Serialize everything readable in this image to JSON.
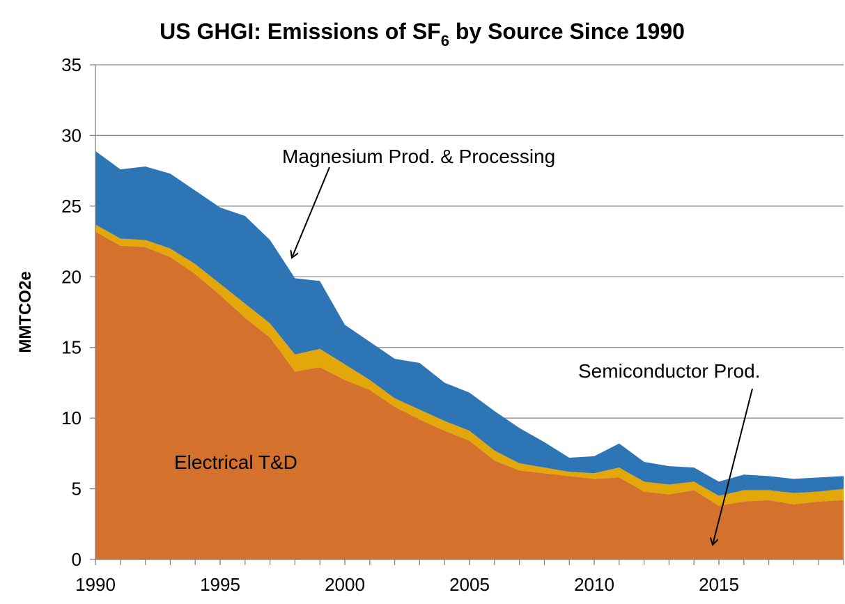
{
  "chart_data": {
    "type": "stacked_area",
    "title_parts": [
      "US GHGI: Emissions of SF",
      "6",
      " by Source Since 1990"
    ],
    "ylabel": "MMTCO2e",
    "x": [
      1990,
      1991,
      1992,
      1993,
      1994,
      1995,
      1996,
      1997,
      1998,
      1999,
      2000,
      2001,
      2002,
      2003,
      2004,
      2005,
      2006,
      2007,
      2008,
      2009,
      2010,
      2011,
      2012,
      2013,
      2014,
      2015,
      2016,
      2017,
      2018,
      2019,
      2020
    ],
    "series": [
      {
        "name": "Electrical T&D",
        "color": "#D4712D",
        "values": [
          23.2,
          22.2,
          22.1,
          21.4,
          20.2,
          18.7,
          17.1,
          15.7,
          13.3,
          13.6,
          12.7,
          12.0,
          10.8,
          9.9,
          9.1,
          8.4,
          7.0,
          6.3,
          6.1,
          5.9,
          5.7,
          5.8,
          4.8,
          4.6,
          4.9,
          3.8,
          4.1,
          4.2,
          3.9,
          4.1,
          4.2
        ]
      },
      {
        "name": "Semiconductor Prod.",
        "color": "#E3A70A",
        "values": [
          0.5,
          0.5,
          0.5,
          0.6,
          0.7,
          0.8,
          1.0,
          1.0,
          1.2,
          1.3,
          1.1,
          0.7,
          0.6,
          0.7,
          0.7,
          0.7,
          0.7,
          0.5,
          0.4,
          0.3,
          0.4,
          0.7,
          0.7,
          0.7,
          0.6,
          0.7,
          0.8,
          0.7,
          0.8,
          0.7,
          0.8
        ]
      },
      {
        "name": "Magnesium Prod. & Processing",
        "color": "#2E75B6",
        "values": [
          5.2,
          4.9,
          5.2,
          5.3,
          5.2,
          5.4,
          6.2,
          5.9,
          5.4,
          4.8,
          2.8,
          2.7,
          2.8,
          3.3,
          2.7,
          2.7,
          2.8,
          2.5,
          1.8,
          1.0,
          1.2,
          1.7,
          1.4,
          1.3,
          1.0,
          1.0,
          1.1,
          1.0,
          1.0,
          1.0,
          0.9
        ]
      }
    ],
    "xlim": [
      1990,
      2020
    ],
    "xticks": [
      1990,
      1995,
      2000,
      2005,
      2010,
      2015
    ],
    "ylim": [
      0,
      35
    ],
    "yticks": [
      0,
      5,
      10,
      15,
      20,
      25,
      30,
      35
    ],
    "grid": true
  }
}
